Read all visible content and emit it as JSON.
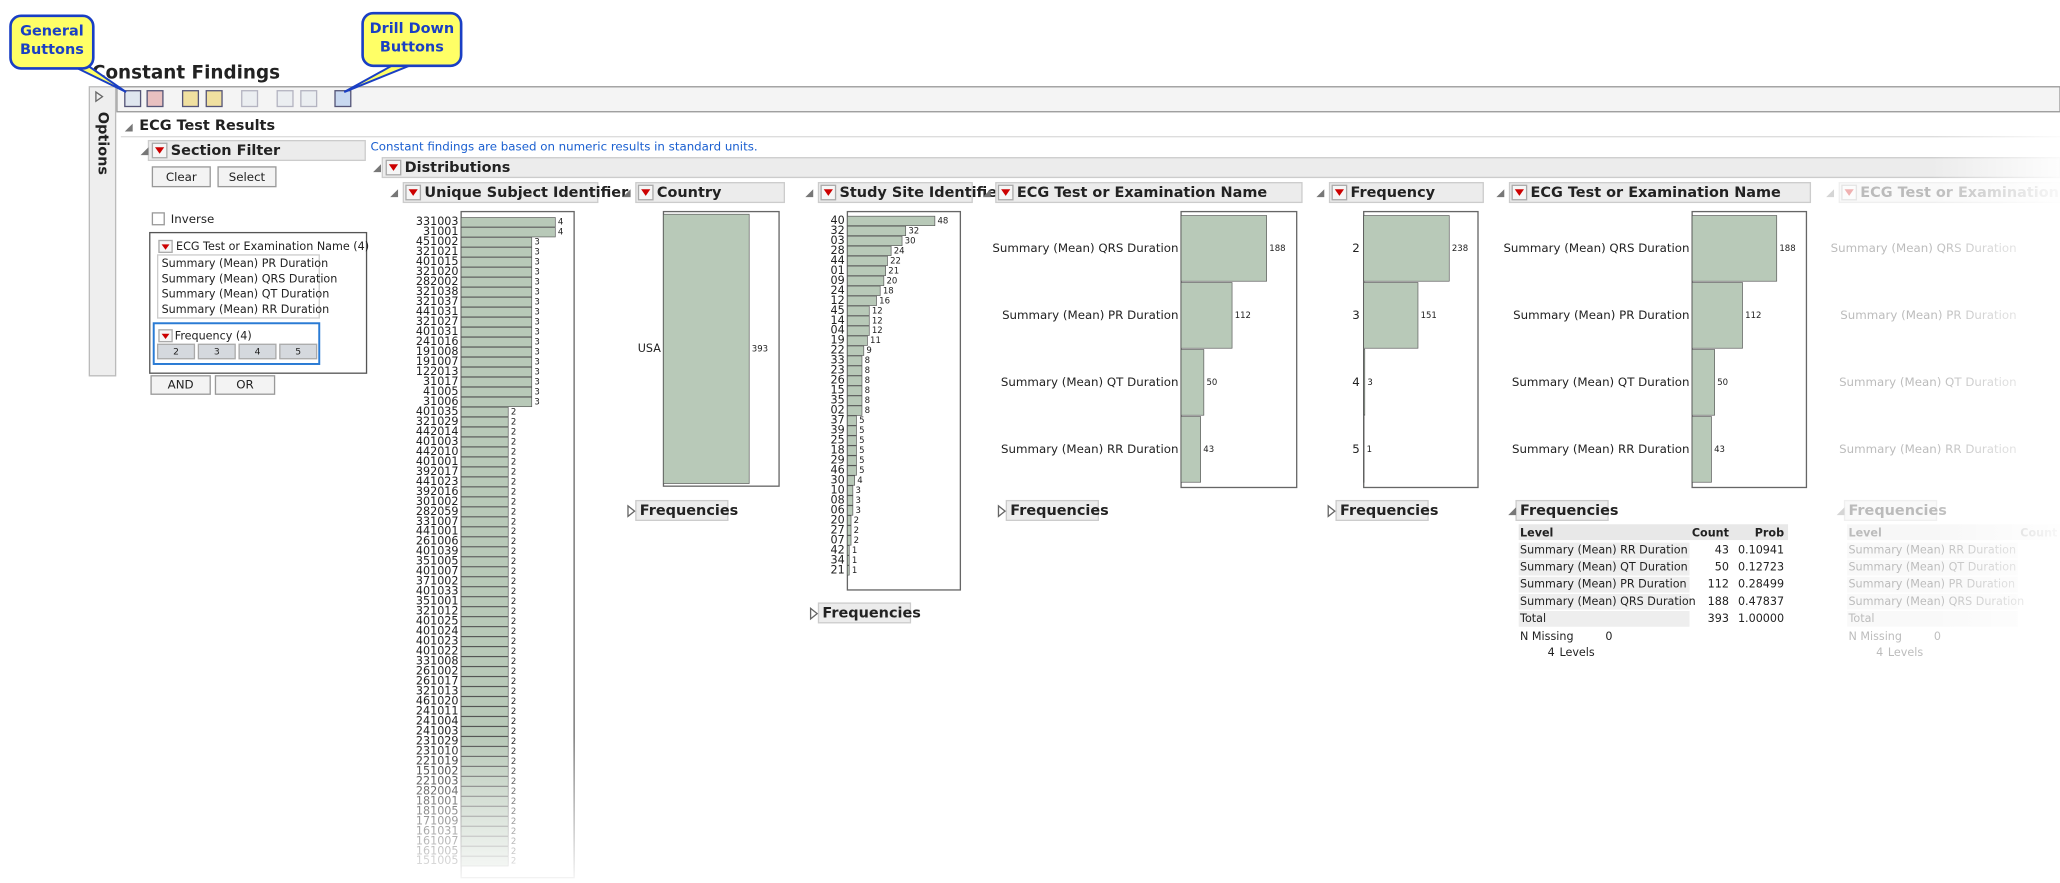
{
  "callouts": [
    {
      "lines": [
        "General",
        "Buttons"
      ]
    },
    {
      "lines": [
        "Drill Down",
        "Buttons"
      ]
    }
  ],
  "title": "Constant Findings",
  "side_tab": "Options",
  "report": {
    "title": "ECG Test Results",
    "note": "Constant findings are based on numeric results in standard units.",
    "section_filter": {
      "title": "Section Filter",
      "buttons": [
        "Clear",
        "Select"
      ],
      "inverse": "Inverse",
      "filter_1": {
        "title": "ECG Test or Examination Name (4)",
        "items": [
          "Summary (Mean) PR Duration",
          "Summary (Mean) QRS Duration",
          "Summary (Mean) QT Duration",
          "Summary (Mean) RR Duration"
        ]
      },
      "filter_2": {
        "title": "Frequency (4)",
        "items": [
          2,
          3,
          4,
          5
        ]
      },
      "logic_buttons": [
        "AND",
        "OR"
      ]
    },
    "distributions": {
      "title": "Distributions",
      "panels": [
        {
          "title": "Unique Subject Identifier",
          "xlim": [
            0,
            4.8
          ],
          "categories": [
            "331003",
            "31001",
            "451002",
            "321021",
            "401015",
            "321020",
            "282002",
            "321038",
            "321037",
            "441031",
            "321027",
            "401031",
            "241016",
            "191008",
            "191007",
            "122013",
            "31017",
            "41005",
            "31006",
            "401035",
            "321029",
            "442014",
            "401003",
            "442010",
            "401001",
            "392017",
            "441023",
            "392016",
            "301002",
            "282059",
            "331007",
            "441001",
            "261006",
            "401039",
            "351005",
            "401007",
            "371002",
            "401033",
            "351001",
            "321012",
            "401025",
            "401024",
            "401023",
            "401022",
            "331008",
            "261002",
            "261017",
            "321013",
            "461020",
            "241011",
            "241004",
            "241003",
            "231029",
            "231010",
            "221019",
            "151002",
            "221003",
            "282004",
            "181001",
            "181005",
            "171009",
            "161031",
            "161007",
            "161005",
            "151005"
          ],
          "values": [
            4,
            4,
            3,
            3,
            3,
            3,
            3,
            3,
            3,
            3,
            3,
            3,
            3,
            3,
            3,
            3,
            3,
            3,
            3,
            2,
            2,
            2,
            2,
            2,
            2,
            2,
            2,
            2,
            2,
            2,
            2,
            2,
            2,
            2,
            2,
            2,
            2,
            2,
            2,
            2,
            2,
            2,
            2,
            2,
            2,
            2,
            2,
            2,
            2,
            2,
            2,
            2,
            2,
            2,
            2,
            2,
            2,
            2,
            2,
            2,
            2,
            2,
            2,
            2,
            2
          ]
        },
        {
          "title": "Country",
          "xlim": [
            0,
            530
          ],
          "categories": [
            "USA"
          ],
          "values": [
            393
          ],
          "frequencies": {
            "title": "Frequencies"
          }
        },
        {
          "title": "Study Site Identifier",
          "xlim": [
            0,
            62
          ],
          "categories": [
            "40",
            "32",
            "03",
            "28",
            "44",
            "01",
            "09",
            "24",
            "12",
            "45",
            "14",
            "04",
            "19",
            "22",
            "33",
            "23",
            "26",
            "15",
            "35",
            "02",
            "37",
            "39",
            "25",
            "18",
            "29",
            "46",
            "30",
            "10",
            "08",
            "06",
            "20",
            "27",
            "07",
            "42",
            "34",
            "21"
          ],
          "values": [
            48,
            32,
            30,
            24,
            22,
            21,
            20,
            18,
            16,
            12,
            12,
            12,
            11,
            9,
            8,
            8,
            8,
            8,
            8,
            8,
            5,
            5,
            5,
            5,
            5,
            5,
            4,
            3,
            3,
            3,
            2,
            2,
            2,
            1,
            1,
            1
          ],
          "frequencies": {
            "title": "Frequencies"
          }
        },
        {
          "title": "ECG Test or Examination Name",
          "xlim": [
            0,
            254
          ],
          "categories": [
            "Summary (Mean) QRS Duration",
            "Summary (Mean) PR Duration",
            "Summary (Mean) QT Duration",
            "Summary (Mean) RR Duration"
          ],
          "values": [
            188,
            112,
            50,
            43
          ],
          "frequencies": {
            "title": "Frequencies"
          }
        },
        {
          "title": "Frequency",
          "xlim": [
            0,
            318
          ],
          "categories": [
            "2",
            "3",
            "4",
            "5"
          ],
          "values": [
            238,
            151,
            3,
            1
          ],
          "frequencies": {
            "title": "Frequencies"
          }
        },
        {
          "title": "ECG Test or Examination Name",
          "xlim": [
            0,
            254
          ],
          "categories": [
            "Summary (Mean) QRS Duration",
            "Summary (Mean) PR Duration",
            "Summary (Mean) QT Duration",
            "Summary (Mean) RR Duration"
          ],
          "values": [
            188,
            112,
            50,
            43
          ],
          "frequencies": {
            "title": "Frequencies",
            "columns": [
              "Level",
              "Count",
              "Prob"
            ],
            "rows": [
              [
                "Summary (Mean) RR Duration",
                "43",
                "0.10941"
              ],
              [
                "Summary (Mean) QT Duration",
                "50",
                "0.12723"
              ],
              [
                "Summary (Mean) PR Duration",
                "112",
                "0.28499"
              ],
              [
                "Summary (Mean) QRS Duration",
                "188",
                "0.47837"
              ],
              [
                "Total",
                "393",
                "1.00000"
              ]
            ],
            "missing_label": "N Missing",
            "missing": 0,
            "levels": 4,
            "levels_label": "Levels"
          }
        },
        {
          "title": "ECG Test or Examination Name",
          "categories": [
            "Summary (Mean) QRS Duration",
            "Summary (Mean) PR Duration",
            "Summary (Mean) QT Duration",
            "Summary (Mean) RR Duration"
          ],
          "frequencies": {
            "title": "Frequencies",
            "columns": [
              "Level",
              "Count"
            ],
            "rows": [
              [
                "Summary (Mean) RR Duration"
              ],
              [
                "Summary (Mean) QT Duration"
              ],
              [
                "Summary (Mean) PR Duration"
              ],
              [
                "Summary (Mean) QRS Duration"
              ],
              [
                "Total"
              ]
            ],
            "missing_label": "N Missing",
            "missing": 0,
            "levels": 4,
            "levels_label": "Levels"
          }
        }
      ]
    }
  }
}
